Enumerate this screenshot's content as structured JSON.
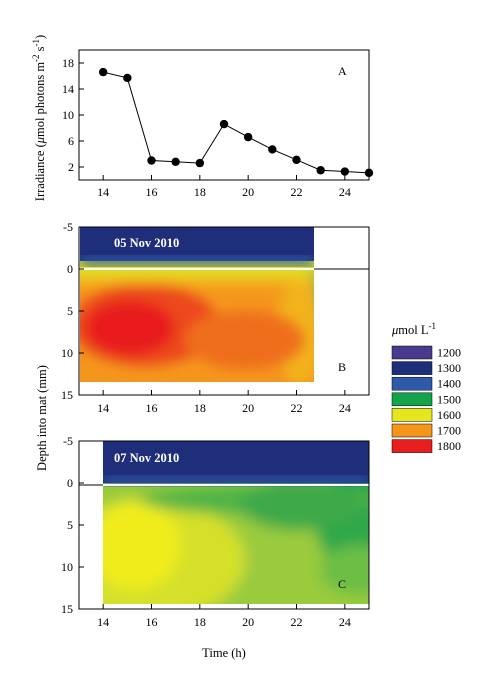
{
  "chart_data": [
    {
      "panel": "A",
      "type": "line",
      "x": [
        14,
        15,
        16,
        17,
        18,
        19,
        20,
        21,
        22,
        23,
        24,
        25
      ],
      "y": [
        16.6,
        15.7,
        3.0,
        2.8,
        2.6,
        8.6,
        6.6,
        4.7,
        3.1,
        1.5,
        1.3,
        1.1
      ],
      "ylabel": "Irradiance (μmol photons m⁻² s⁻¹)",
      "xlim": [
        13,
        25
      ],
      "ylim": [
        0,
        20
      ],
      "xticks": [
        "14",
        "16",
        "18",
        "20",
        "22",
        "24"
      ],
      "yticks": [
        "2",
        "6",
        "10",
        "14",
        "18"
      ]
    },
    {
      "panel": "B",
      "type": "heatmap",
      "date_label": "05 Nov 2010",
      "x_range": [
        13,
        22.7
      ],
      "depth_range": [
        -5,
        13.5
      ],
      "xlim": [
        13,
        25
      ],
      "ylim": [
        -5,
        15
      ],
      "description_levels": "contour fill of concentration in μmol L⁻¹",
      "xticks": [
        "14",
        "16",
        "18",
        "20",
        "22",
        "24"
      ],
      "yticks": [
        "-5",
        "0",
        "5",
        "10",
        "15"
      ]
    },
    {
      "panel": "C",
      "type": "heatmap",
      "date_label": "07 Nov 2010",
      "x_range": [
        14,
        25
      ],
      "depth_range": [
        -5,
        14
      ],
      "xlim": [
        13,
        25
      ],
      "ylim": [
        -5,
        15
      ],
      "xticks": [
        "14",
        "16",
        "18",
        "20",
        "22",
        "24"
      ],
      "yticks": [
        "-5",
        "0",
        "5",
        "10",
        "15"
      ]
    }
  ],
  "shared": {
    "xlabel": "Time (h)",
    "ylabel_depth": "Depth into mat (mm)"
  },
  "legend": {
    "title": "μmol L⁻¹",
    "entries": [
      {
        "label": "1200",
        "color": "#4a3a8e"
      },
      {
        "label": "1300",
        "color": "#1f2e7a"
      },
      {
        "label": "1400",
        "color": "#2e5aa8"
      },
      {
        "label": "1500",
        "color": "#13a34a"
      },
      {
        "label": "1600",
        "color": "#e6e61c"
      },
      {
        "label": "1700",
        "color": "#f5961a"
      },
      {
        "label": "1800",
        "color": "#e81e1e"
      }
    ]
  },
  "panel_letters": {
    "A": "A",
    "B": "B",
    "C": "C"
  }
}
